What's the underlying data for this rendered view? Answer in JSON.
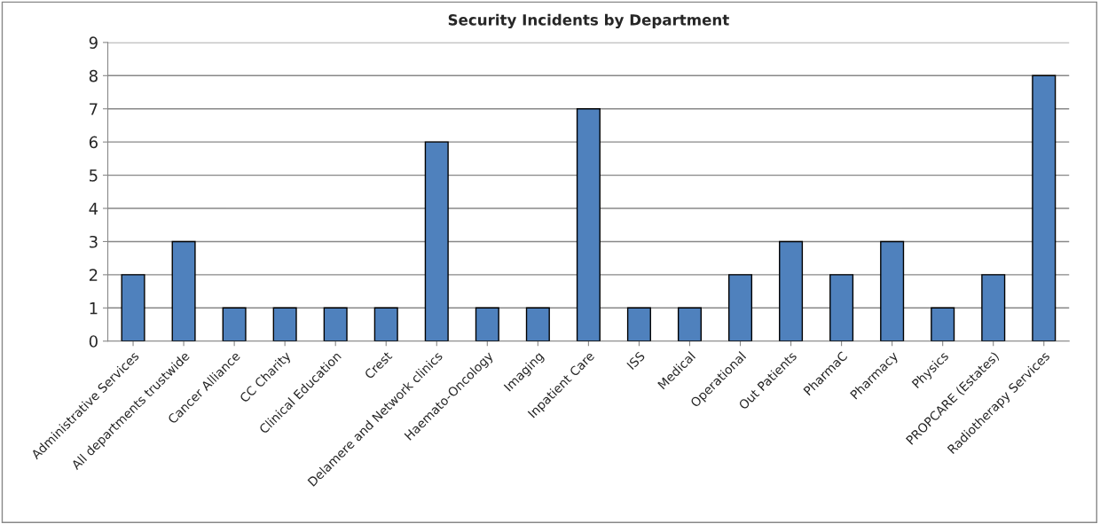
{
  "chart_data": {
    "type": "bar",
    "title": "Security Incidents by Department",
    "categories": [
      "Administrative Services",
      "All departments trustwide",
      "Cancer Alliance",
      "CC Charity",
      "Clinical Education",
      "Crest",
      "Delamere and Network clinics",
      "Haemato-Oncology",
      "Imaging",
      "Inpatient Care",
      "ISS",
      "Medical",
      "Operational",
      "Out Patients",
      "PharmaC",
      "Pharmacy",
      "Physics",
      "PROPCARE (Estates)",
      "Radiotherapy Services"
    ],
    "values": [
      2,
      3,
      1,
      1,
      1,
      1,
      6,
      1,
      1,
      7,
      1,
      1,
      2,
      3,
      2,
      3,
      1,
      2,
      8
    ],
    "color": "#4f81bd",
    "ylim": [
      0,
      9
    ],
    "yticks": [
      0,
      1,
      2,
      3,
      4,
      5,
      6,
      7,
      8,
      9
    ],
    "grid": "y",
    "legend": false
  }
}
